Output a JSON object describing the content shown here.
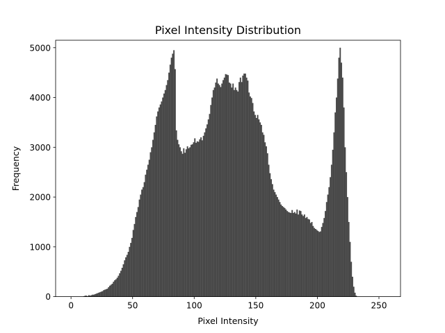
{
  "chart_data": {
    "type": "bar",
    "title": "Pixel Intensity Distribution",
    "xlabel": "Pixel Intensity",
    "ylabel": "Frequency",
    "xlim": [
      -12.5,
      267.5
    ],
    "ylim": [
      0,
      5150
    ],
    "xticks": [
      0,
      50,
      100,
      150,
      200,
      250
    ],
    "yticks": [
      0,
      1000,
      2000,
      3000,
      4000,
      5000
    ],
    "bar_color": "#484848",
    "grid": false,
    "bin_start": 0,
    "bin_width": 1,
    "values": [
      0,
      0,
      0,
      0,
      0,
      0,
      0,
      0,
      0,
      0,
      10,
      20,
      20,
      10,
      30,
      20,
      30,
      40,
      40,
      50,
      60,
      70,
      80,
      90,
      100,
      110,
      130,
      140,
      150,
      160,
      190,
      220,
      240,
      260,
      300,
      330,
      350,
      380,
      420,
      470,
      520,
      580,
      650,
      730,
      790,
      840,
      900,
      1000,
      1080,
      1180,
      1340,
      1460,
      1600,
      1700,
      1800,
      1950,
      2050,
      2150,
      2200,
      2300,
      2450,
      2550,
      2650,
      2750,
      2900,
      3000,
      3150,
      3300,
      3450,
      3620,
      3720,
      3800,
      3860,
      3920,
      4000,
      4080,
      4150,
      4250,
      4350,
      4500,
      4660,
      4800,
      4880,
      4950,
      4570,
      3340,
      3150,
      3060,
      3000,
      2920,
      2870,
      2980,
      2890,
      2960,
      3020,
      2980,
      3000,
      3050,
      3060,
      3100,
      3180,
      3090,
      3120,
      3110,
      3160,
      3200,
      3140,
      3230,
      3300,
      3380,
      3460,
      3560,
      3670,
      3850,
      4000,
      4150,
      4200,
      4300,
      4380,
      4280,
      4250,
      4210,
      4280,
      4350,
      4400,
      4470,
      4460,
      4450,
      4300,
      4280,
      4200,
      4280,
      4150,
      4200,
      4150,
      4120,
      4310,
      4400,
      4310,
      4440,
      4480,
      4480,
      4400,
      4340,
      4100,
      4020,
      3990,
      3890,
      3720,
      3650,
      3590,
      3650,
      3560,
      3500,
      3450,
      3300,
      3250,
      3100,
      3020,
      2880,
      2650,
      2480,
      2360,
      2260,
      2150,
      2100,
      2050,
      2000,
      1950,
      1900,
      1850,
      1820,
      1800,
      1780,
      1750,
      1720,
      1700,
      1690,
      1680,
      1740,
      1680,
      1700,
      1670,
      1750,
      1650,
      1730,
      1720,
      1650,
      1620,
      1650,
      1580,
      1600,
      1560,
      1550,
      1480,
      1500,
      1420,
      1380,
      1360,
      1340,
      1320,
      1300,
      1310,
      1400,
      1480,
      1580,
      1720,
      1900,
      2050,
      2200,
      2400,
      2650,
      2950,
      3300,
      3700,
      4000,
      4380,
      4800,
      5000,
      4700,
      4400,
      3800,
      3000,
      2500,
      2000,
      1500,
      1100,
      700,
      400,
      200,
      80,
      20,
      0,
      0,
      0,
      0,
      0,
      0
    ]
  }
}
